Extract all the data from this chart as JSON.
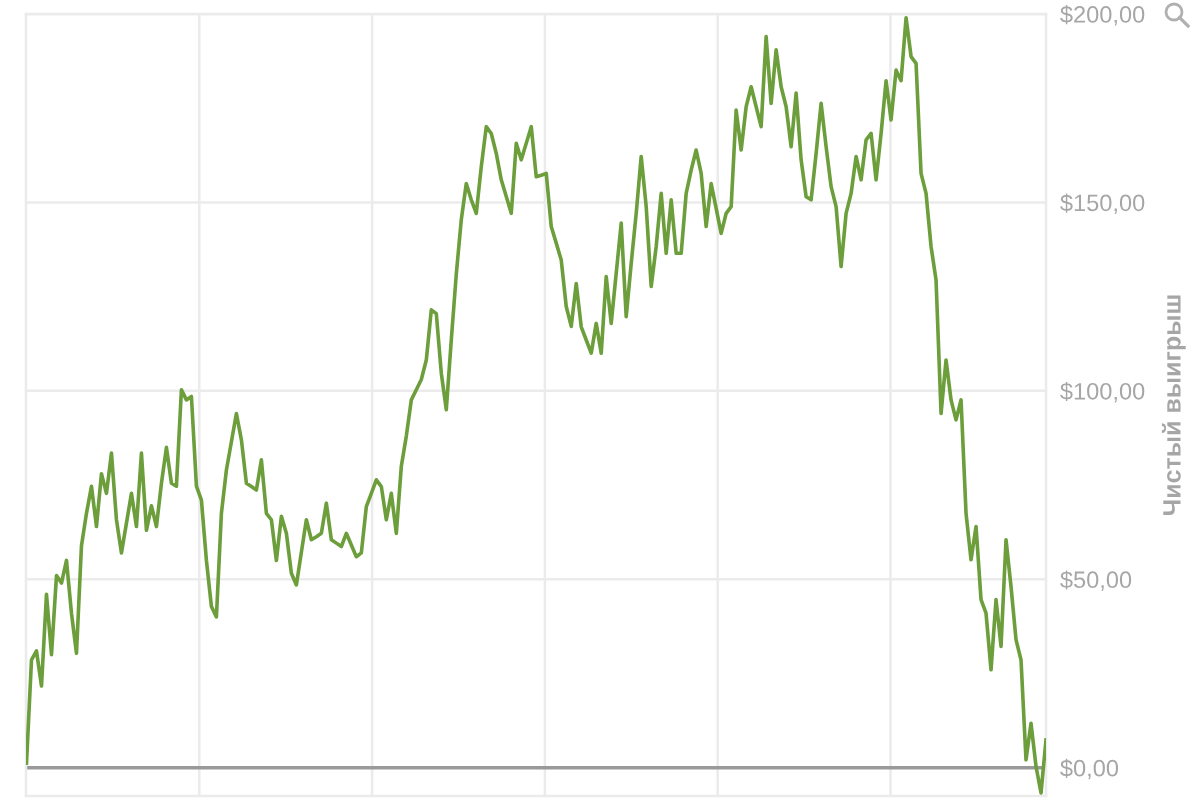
{
  "chart_data": {
    "type": "line",
    "ylabel": "Чистый выигрыш",
    "categories": [
      null,
      null,
      null,
      null,
      null,
      null,
      null,
      null,
      null,
      null,
      null,
      null,
      null,
      null,
      null,
      null,
      null,
      null,
      null,
      null,
      null,
      null,
      null,
      null,
      null,
      null,
      null,
      null,
      null,
      null,
      null,
      null,
      null,
      null,
      null,
      null,
      null,
      null,
      null,
      null,
      null,
      null,
      null,
      null,
      null,
      null,
      null,
      null,
      null,
      null,
      null,
      null,
      null,
      null,
      null,
      null,
      null,
      null,
      null,
      null,
      null,
      null,
      null,
      null,
      null,
      null,
      null,
      null,
      null,
      null,
      null,
      null,
      null,
      null,
      null,
      null,
      null,
      null,
      null,
      null,
      null,
      null,
      null,
      null,
      null,
      null,
      null,
      null,
      null,
      null,
      null,
      null,
      null,
      null,
      null,
      null,
      null,
      null,
      null,
      null,
      null,
      null,
      null,
      null,
      null,
      null,
      null,
      null,
      null,
      null,
      null,
      null,
      null,
      null,
      null,
      null,
      null,
      null,
      null,
      null,
      null,
      null,
      null,
      null,
      null,
      null,
      null,
      null,
      null,
      null,
      null,
      null,
      null,
      null,
      null,
      null,
      null,
      null,
      null,
      null,
      null,
      null,
      null,
      null,
      null,
      null,
      null,
      null,
      null,
      null,
      null,
      null,
      null,
      null,
      null,
      null,
      null,
      null,
      null,
      null,
      null,
      null,
      null,
      null,
      null,
      null,
      null,
      null,
      null,
      null,
      null,
      null,
      null,
      null,
      null,
      null,
      null,
      null,
      null,
      null,
      null,
      null,
      null,
      null,
      null,
      null,
      null,
      null,
      null,
      null,
      null,
      null,
      null,
      null,
      null,
      null,
      null,
      null,
      null,
      null,
      null,
      null,
      null,
      null,
      null
    ],
    "series": [
      {
        "color": "#6c9e3b",
        "values": [
          1.2,
          28.6,
          31,
          21.7,
          46,
          30,
          51,
          49,
          55,
          41,
          30.4,
          58.9,
          67.5,
          74.7,
          64,
          78,
          72.8,
          83.5,
          65.8,
          57,
          64.9,
          72.8,
          64,
          83.5,
          63,
          69.5,
          64,
          75.5,
          85,
          75.5,
          74.7,
          100.3,
          97.6,
          98.5,
          74.7,
          71,
          55,
          42.8,
          40,
          67.5,
          79,
          86.5,
          94,
          87,
          75.5,
          74.6,
          73.7,
          81.7,
          67.5,
          65.8,
          55,
          66.7,
          62.2,
          51.6,
          48.5,
          57.2,
          65.8,
          60.5,
          61.3,
          62.2,
          70.2,
          60.5,
          59.6,
          58.7,
          62.2,
          59.1,
          56,
          57,
          69.3,
          72.8,
          76.4,
          74.6,
          65.8,
          72.8,
          62.2,
          80,
          88,
          97.6,
          100.3,
          103,
          108.2,
          121.5,
          120.5,
          104.7,
          95,
          113.5,
          131,
          145.4,
          155,
          150.7,
          147.1,
          159.5,
          170.1,
          168.3,
          163,
          156,
          151.6,
          147.1,
          165.7,
          161.3,
          165.7,
          170.1,
          156.8,
          157.2,
          157.7,
          143.6,
          139.2,
          134.7,
          122.4,
          117.1,
          128.5,
          117,
          113.5,
          110,
          117.9,
          110,
          130.3,
          117.9,
          131.2,
          144.5,
          119.7,
          133.8,
          147.1,
          162.2,
          148.9,
          127.7,
          138.3,
          152.4,
          136.5,
          150.7,
          136.5,
          136.5,
          152.4,
          158.6,
          163.9,
          157.7,
          143.6,
          155,
          148.4,
          141.8,
          147.1,
          148.9,
          174.5,
          163.9,
          175.4,
          180.7,
          175.4,
          170.1,
          194,
          176.3,
          190.5,
          180.7,
          175.4,
          164.8,
          179,
          161.3,
          151.5,
          150.7,
          163,
          176.3,
          164.8,
          154.2,
          148.9,
          133,
          147.1,
          152.4,
          162.2,
          156,
          166.6,
          168.3,
          156,
          168.3,
          182.3,
          171.9,
          185.1,
          182.3,
          199,
          188.7,
          186.9,
          157.7,
          152.4,
          138.3,
          129.4,
          94,
          108.2,
          97.6,
          92.3,
          97.6,
          67.5,
          55.2,
          64,
          44.6,
          41,
          26,
          44.6,
          32.2,
          60.5,
          48.1,
          34,
          28.6,
          2.1,
          11.8,
          0.4,
          -6.7,
          7.4
        ]
      }
    ],
    "ylim": [
      -7.5,
      200
    ],
    "yticks": [
      {
        "value": 0,
        "label": "$0,00"
      },
      {
        "value": 50,
        "label": "$50,00"
      },
      {
        "value": 100,
        "label": "$100,00"
      },
      {
        "value": 150,
        "label": "$150,00"
      },
      {
        "value": 200,
        "label": "$200,00"
      }
    ],
    "grid": true,
    "line_style": "solid",
    "ref_lines": [
      {
        "axis": "y",
        "value": 0,
        "color": "#999999"
      }
    ]
  }
}
